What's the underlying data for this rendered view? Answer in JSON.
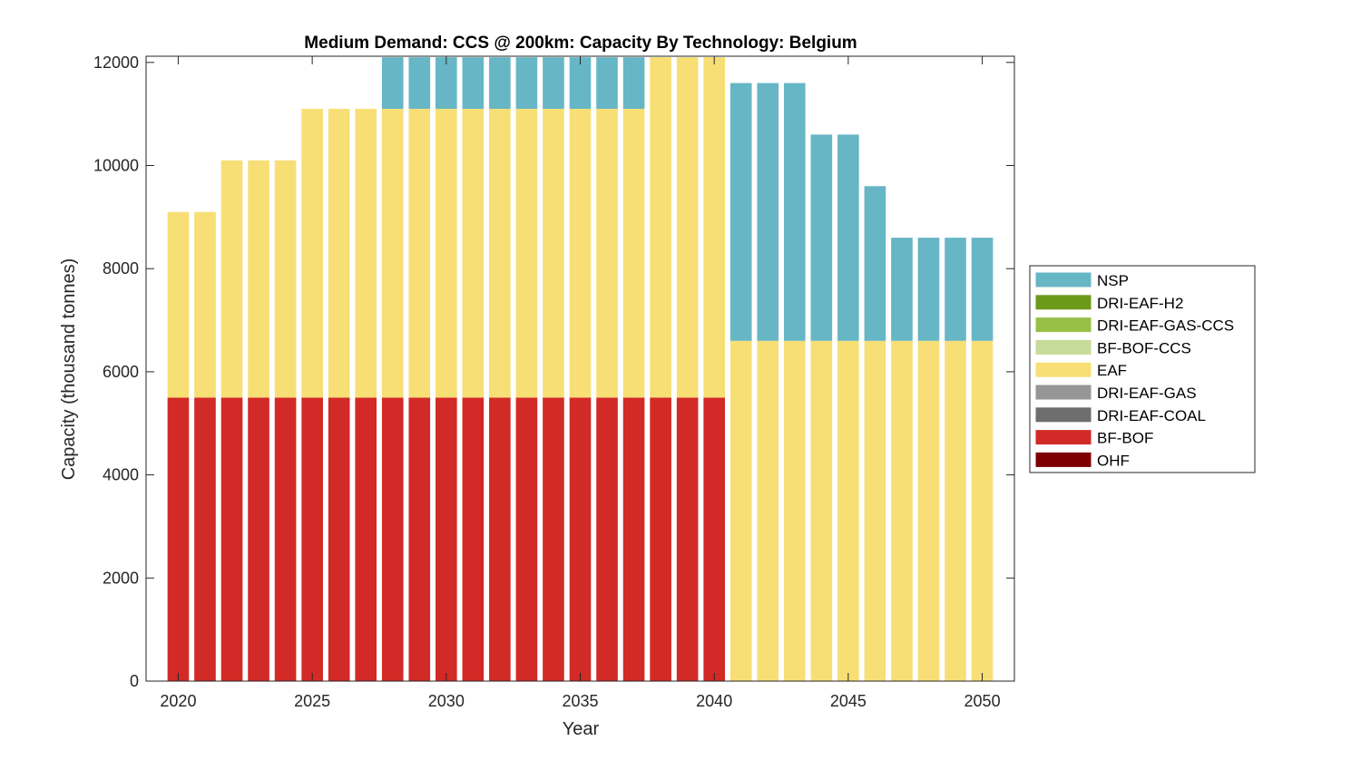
{
  "chart_data": {
    "type": "bar",
    "stacked": true,
    "title": "Medium Demand: CCS @ 200km: Capacity By Technology: Belgium",
    "xlabel": "Year",
    "ylabel": "Capacity (thousand tonnes)",
    "xlim": [
      2018.8,
      2051.2
    ],
    "ylim": [
      0,
      12120
    ],
    "xticks": [
      2020,
      2025,
      2030,
      2035,
      2040,
      2045,
      2050
    ],
    "yticks": [
      0,
      2000,
      4000,
      6000,
      8000,
      10000,
      12000
    ],
    "legend_placement": "outside-right",
    "categories": [
      2020,
      2021,
      2022,
      2023,
      2024,
      2025,
      2026,
      2027,
      2028,
      2029,
      2030,
      2031,
      2032,
      2033,
      2034,
      2035,
      2036,
      2037,
      2038,
      2039,
      2040,
      2041,
      2042,
      2043,
      2044,
      2045,
      2046,
      2047,
      2048,
      2049,
      2050
    ],
    "series": [
      {
        "name": "OHF",
        "color": "#7f0000",
        "values": [
          0,
          0,
          0,
          0,
          0,
          0,
          0,
          0,
          0,
          0,
          0,
          0,
          0,
          0,
          0,
          0,
          0,
          0,
          0,
          0,
          0,
          0,
          0,
          0,
          0,
          0,
          0,
          0,
          0,
          0,
          0
        ]
      },
      {
        "name": "BF-BOF",
        "color": "#d22a26",
        "values": [
          5500,
          5500,
          5500,
          5500,
          5500,
          5500,
          5500,
          5500,
          5500,
          5500,
          5500,
          5500,
          5500,
          5500,
          5500,
          5500,
          5500,
          5500,
          5500,
          5500,
          5500,
          0,
          0,
          0,
          0,
          0,
          0,
          0,
          0,
          0,
          0
        ]
      },
      {
        "name": "DRI-EAF-COAL",
        "color": "#6e6e6e",
        "values": [
          0,
          0,
          0,
          0,
          0,
          0,
          0,
          0,
          0,
          0,
          0,
          0,
          0,
          0,
          0,
          0,
          0,
          0,
          0,
          0,
          0,
          0,
          0,
          0,
          0,
          0,
          0,
          0,
          0,
          0,
          0
        ]
      },
      {
        "name": "DRI-EAF-GAS",
        "color": "#969696",
        "values": [
          0,
          0,
          0,
          0,
          0,
          0,
          0,
          0,
          0,
          0,
          0,
          0,
          0,
          0,
          0,
          0,
          0,
          0,
          0,
          0,
          0,
          0,
          0,
          0,
          0,
          0,
          0,
          0,
          0,
          0,
          0
        ]
      },
      {
        "name": "EAF",
        "color": "#f7df76",
        "values": [
          3600,
          3600,
          4600,
          4600,
          4600,
          5600,
          5600,
          5600,
          5600,
          5600,
          5600,
          5600,
          5600,
          5600,
          5600,
          5600,
          5600,
          5600,
          6600,
          6600,
          6600,
          6600,
          6600,
          6600,
          6600,
          6600,
          6600,
          6600,
          6600,
          6600,
          6600
        ]
      },
      {
        "name": "BF-BOF-CCS",
        "color": "#c6dc98",
        "values": [
          0,
          0,
          0,
          0,
          0,
          0,
          0,
          0,
          0,
          0,
          0,
          0,
          0,
          0,
          0,
          0,
          0,
          0,
          0,
          0,
          0,
          0,
          0,
          0,
          0,
          0,
          0,
          0,
          0,
          0,
          0
        ]
      },
      {
        "name": "DRI-EAF-GAS-CCS",
        "color": "#98bf47",
        "values": [
          0,
          0,
          0,
          0,
          0,
          0,
          0,
          0,
          0,
          0,
          0,
          0,
          0,
          0,
          0,
          0,
          0,
          0,
          0,
          0,
          0,
          0,
          0,
          0,
          0,
          0,
          0,
          0,
          0,
          0,
          0
        ]
      },
      {
        "name": "DRI-EAF-H2",
        "color": "#6c9a1b",
        "values": [
          0,
          0,
          0,
          0,
          0,
          0,
          0,
          0,
          0,
          0,
          0,
          0,
          0,
          0,
          0,
          0,
          0,
          0,
          0,
          0,
          0,
          0,
          0,
          0,
          0,
          0,
          0,
          0,
          0,
          0,
          0
        ]
      },
      {
        "name": "NSP",
        "color": "#67b6c6",
        "values": [
          0,
          0,
          0,
          0,
          0,
          0,
          0,
          0,
          1000,
          1000,
          1000,
          1000,
          1000,
          1000,
          1000,
          1000,
          1000,
          1000,
          0,
          0,
          0,
          5000,
          5000,
          5000,
          4000,
          4000,
          3000,
          2000,
          2000,
          2000,
          2000
        ]
      }
    ],
    "legend_order": [
      "NSP",
      "DRI-EAF-H2",
      "DRI-EAF-GAS-CCS",
      "BF-BOF-CCS",
      "EAF",
      "DRI-EAF-GAS",
      "DRI-EAF-COAL",
      "BF-BOF",
      "OHF"
    ]
  }
}
